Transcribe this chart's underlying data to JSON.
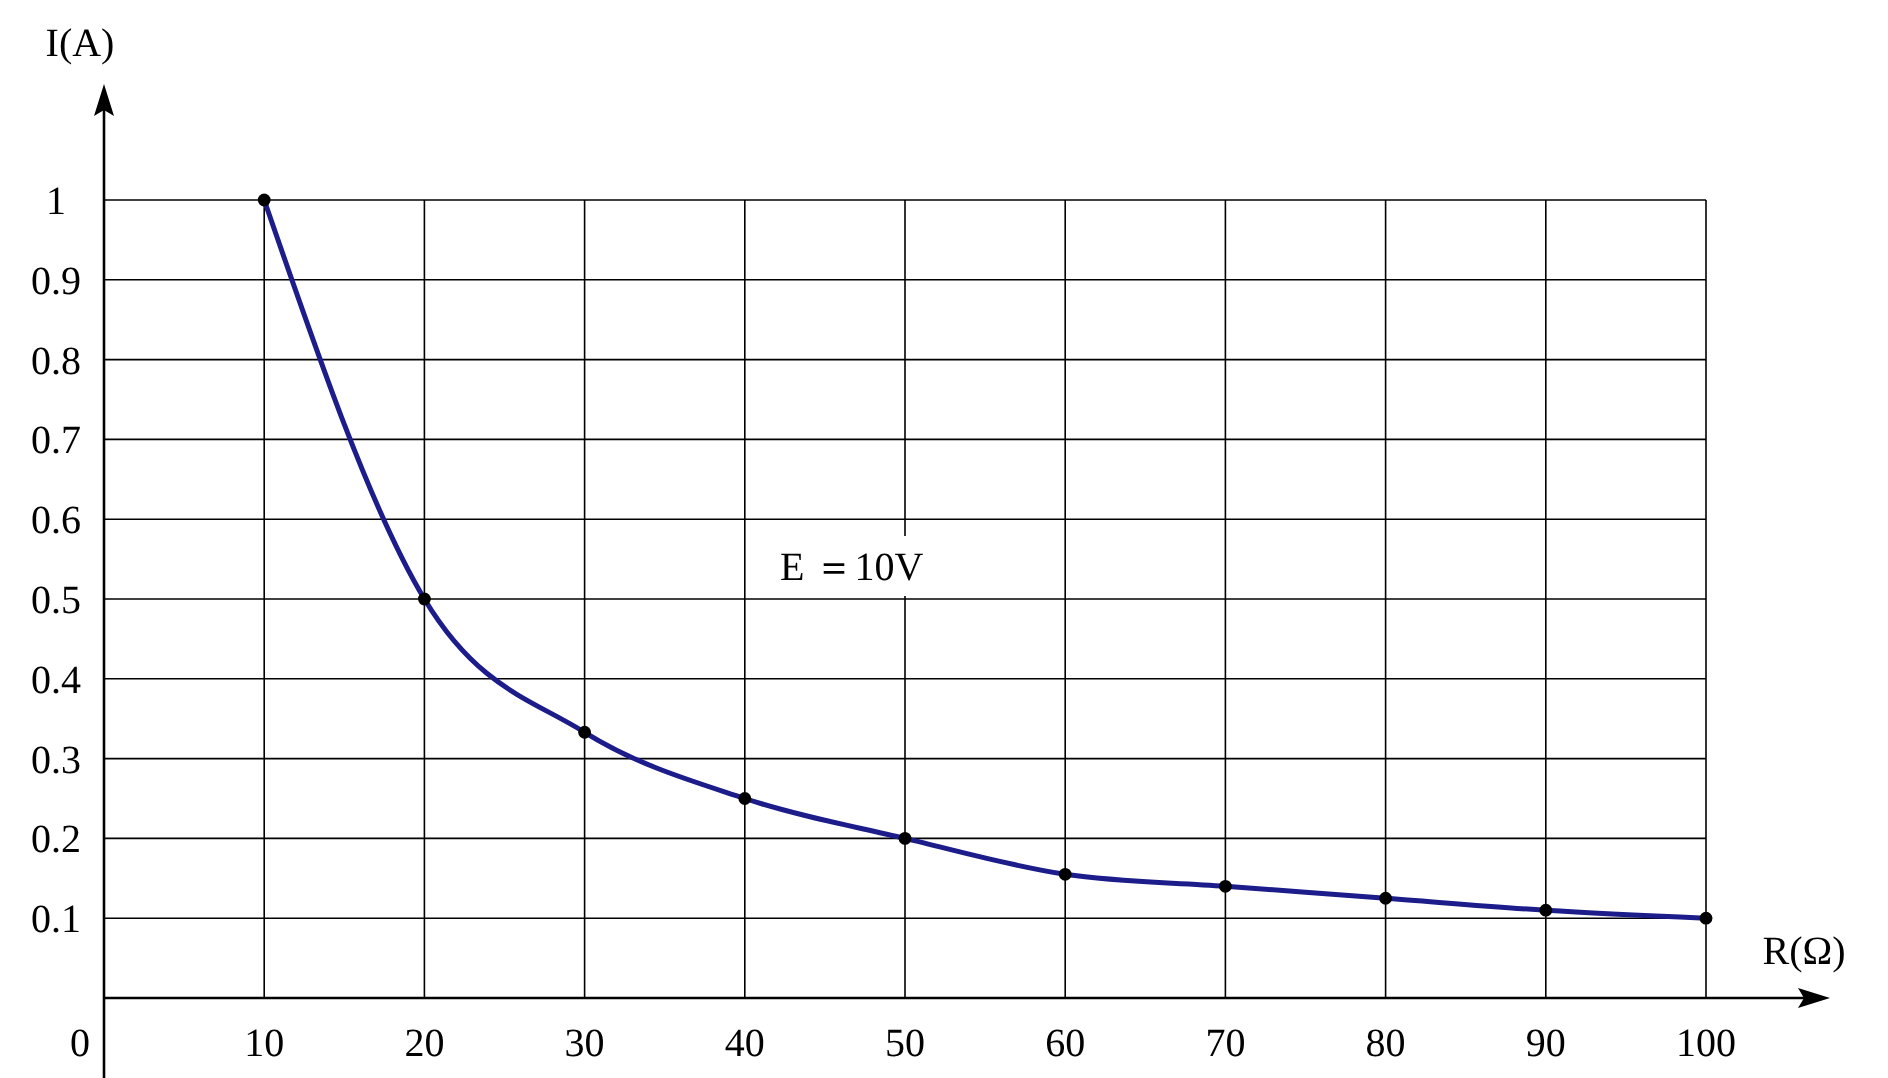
{
  "chart_data": {
    "type": "line",
    "xlabel": "R(Ω)",
    "ylabel": "I(A)",
    "x": [
      10,
      20,
      30,
      40,
      50,
      60,
      70,
      80,
      90,
      100
    ],
    "series": [
      {
        "color": "#1c1c8a",
        "values": [
          1,
          0.5,
          0.333,
          0.25,
          0.2,
          0.155,
          0.14,
          0.125,
          0.11,
          0.1
        ],
        "marker": "none"
      },
      {
        "type": "scatter",
        "color": "#000000",
        "values": [
          1,
          0.5,
          0.333,
          0.25,
          0.2,
          0.155,
          0.14,
          0.125,
          0.11,
          0.1
        ],
        "marker": "circle"
      }
    ],
    "xlim": [
      0,
      100
    ],
    "ylim": [
      0,
      1
    ],
    "xticks": [
      {
        "value": 0,
        "label": "0"
      },
      10,
      20,
      30,
      40,
      50,
      60,
      70,
      80,
      90,
      100
    ],
    "yticks": [
      0.1,
      0.2,
      0.3,
      0.4,
      0.5,
      0.6,
      0.7,
      0.8,
      0.9,
      1
    ],
    "grid": true,
    "annotations": [
      "E ＝10V"
    ]
  }
}
